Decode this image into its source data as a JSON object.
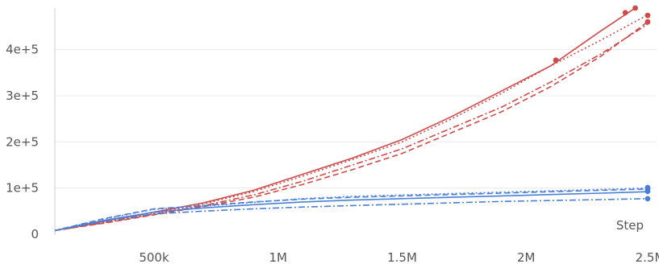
{
  "chart_data": {
    "type": "line",
    "xlabel": "Step",
    "ylabel": "",
    "xlim": [
      100000,
      2500000
    ],
    "ylim": [
      0,
      490000
    ],
    "grid": true,
    "x_ticks": [
      {
        "value": 500000,
        "label": "500k"
      },
      {
        "value": 1000000,
        "label": "1M"
      },
      {
        "value": 1500000,
        "label": "1.5M"
      },
      {
        "value": 2000000,
        "label": "2M"
      },
      {
        "value": 2500000,
        "label": "2.5M"
      }
    ],
    "y_ticks": [
      {
        "value": 0,
        "label": "0"
      },
      {
        "value": 100000,
        "label": "1e+5"
      },
      {
        "value": 200000,
        "label": "2e+5"
      },
      {
        "value": 300000,
        "label": "3e+5"
      },
      {
        "value": 400000,
        "label": "4e+5"
      }
    ],
    "colors": {
      "red": "#d04a4a",
      "blue": "#4a7fd6",
      "grid": "#ececec",
      "axis": "#cccccc"
    },
    "series": [
      {
        "color": "#d04a4a",
        "dash": "solid",
        "x": [
          100000,
          300000,
          500000,
          700000,
          900000,
          1100000,
          1300000,
          1500000,
          1700000,
          1900000,
          2100000,
          2300000,
          2440000
        ],
        "y": [
          8000,
          28000,
          48000,
          68000,
          95000,
          130000,
          165000,
          205000,
          255000,
          310000,
          365000,
          440000,
          490000
        ]
      },
      {
        "color": "#d04a4a",
        "dash": "dotted",
        "x": [
          100000,
          300000,
          500000,
          700000,
          900000,
          1100000,
          1300000,
          1500000,
          1700000,
          1900000,
          2100000,
          2300000,
          2490000
        ],
        "y": [
          8000,
          26000,
          45000,
          66000,
          92000,
          126000,
          162000,
          200000,
          250000,
          305000,
          365000,
          420000,
          475000
        ]
      },
      {
        "color": "#d04a4a",
        "dash": "dashdot",
        "x": [
          100000,
          300000,
          500000,
          700000,
          900000,
          1100000,
          1300000,
          1500000,
          1700000,
          1900000,
          2100000,
          2300000,
          2490000
        ],
        "y": [
          8000,
          25000,
          43000,
          62000,
          85000,
          115000,
          150000,
          185000,
          230000,
          275000,
          330000,
          390000,
          455000
        ]
      },
      {
        "color": "#d04a4a",
        "dash": "dashed",
        "x": [
          100000,
          300000,
          500000,
          700000,
          900000,
          1100000,
          1300000,
          1500000,
          1700000,
          1900000,
          2100000,
          2300000,
          2490000
        ],
        "y": [
          8000,
          24000,
          42000,
          60000,
          80000,
          108000,
          140000,
          175000,
          220000,
          265000,
          320000,
          385000,
          460000
        ]
      },
      {
        "color": "#4a7fd6",
        "dash": "solid",
        "x": [
          100000,
          300000,
          500000,
          700000,
          900000,
          1100000,
          1300000,
          1500000,
          1700000,
          1900000,
          2100000,
          2300000,
          2490000
        ],
        "y": [
          8000,
          30000,
          48000,
          57000,
          64000,
          70000,
          74000,
          77000,
          80000,
          83000,
          86000,
          89000,
          92000
        ]
      },
      {
        "color": "#4a7fd6",
        "dash": "dashed",
        "x": [
          100000,
          300000,
          500000,
          700000,
          900000,
          1100000,
          1300000,
          1500000,
          1700000,
          1900000,
          2100000,
          2300000,
          2490000
        ],
        "y": [
          8000,
          34000,
          55000,
          62000,
          70000,
          76000,
          80000,
          83000,
          86000,
          89000,
          92000,
          95000,
          98000
        ]
      },
      {
        "color": "#4a7fd6",
        "dash": "dotted",
        "x": [
          100000,
          300000,
          500000,
          700000,
          900000,
          1100000,
          1300000,
          1500000,
          1700000,
          1900000,
          2100000,
          2300000,
          2490000
        ],
        "y": [
          8000,
          33000,
          54000,
          61000,
          69000,
          77000,
          82000,
          85000,
          88000,
          91000,
          94000,
          97000,
          100000
        ]
      },
      {
        "color": "#4a7fd6",
        "dash": "dashdot",
        "x": [
          100000,
          300000,
          500000,
          700000,
          900000,
          1100000,
          1300000,
          1500000,
          1700000,
          1900000,
          2100000,
          2300000,
          2490000
        ],
        "y": [
          8000,
          28000,
          44000,
          50000,
          55000,
          59000,
          62000,
          65000,
          68000,
          71000,
          73000,
          75000,
          77000
        ]
      }
    ],
    "markers": [
      {
        "color": "#d04a4a",
        "x": 2400000,
        "y": 480000
      },
      {
        "color": "#d04a4a",
        "x": 2440000,
        "y": 490000
      },
      {
        "color": "#d04a4a",
        "x": 2490000,
        "y": 474000
      },
      {
        "color": "#d04a4a",
        "x": 2490000,
        "y": 460000
      },
      {
        "color": "#d04a4a",
        "x": 2120000,
        "y": 377000
      },
      {
        "color": "#4a7fd6",
        "x": 2490000,
        "y": 101000
      },
      {
        "color": "#4a7fd6",
        "x": 2490000,
        "y": 98000
      },
      {
        "color": "#4a7fd6",
        "x": 2490000,
        "y": 93000
      },
      {
        "color": "#4a7fd6",
        "x": 2490000,
        "y": 77000
      }
    ]
  }
}
